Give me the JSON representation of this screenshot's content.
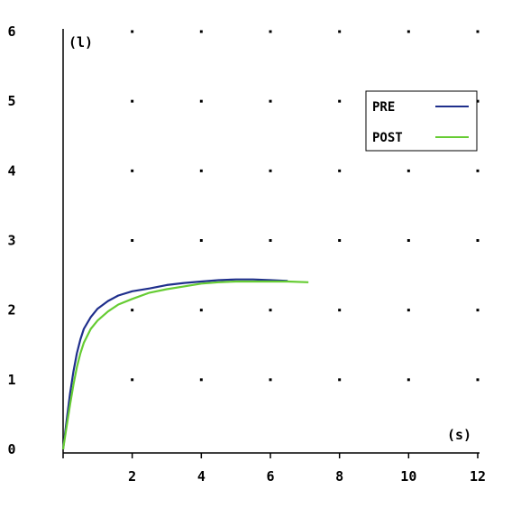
{
  "chart_data": {
    "type": "line",
    "xlabel": "(s)",
    "ylabel": "(l)",
    "xlim": [
      0,
      12
    ],
    "ylim": [
      0,
      6
    ],
    "x_ticks": [
      2,
      4,
      6,
      8,
      10,
      12
    ],
    "y_ticks": [
      0,
      1,
      2,
      3,
      4,
      5,
      6
    ],
    "grid": "dots",
    "legend_position": "top-right",
    "series": [
      {
        "name": "PRE",
        "color": "#1f2f8c",
        "points": [
          [
            0,
            0
          ],
          [
            0.1,
            0.4
          ],
          [
            0.2,
            0.8
          ],
          [
            0.3,
            1.12
          ],
          [
            0.4,
            1.38
          ],
          [
            0.5,
            1.58
          ],
          [
            0.6,
            1.73
          ],
          [
            0.8,
            1.9
          ],
          [
            1.0,
            2.02
          ],
          [
            1.3,
            2.13
          ],
          [
            1.6,
            2.21
          ],
          [
            2.0,
            2.27
          ],
          [
            2.5,
            2.31
          ],
          [
            3.0,
            2.36
          ],
          [
            3.5,
            2.39
          ],
          [
            4.0,
            2.41
          ],
          [
            4.5,
            2.43
          ],
          [
            5.0,
            2.44
          ],
          [
            5.5,
            2.44
          ],
          [
            6.0,
            2.43
          ],
          [
            6.5,
            2.42
          ]
        ]
      },
      {
        "name": "POST",
        "color": "#66cc33",
        "points": [
          [
            0,
            0
          ],
          [
            0.1,
            0.32
          ],
          [
            0.2,
            0.64
          ],
          [
            0.3,
            0.93
          ],
          [
            0.4,
            1.18
          ],
          [
            0.5,
            1.38
          ],
          [
            0.6,
            1.53
          ],
          [
            0.8,
            1.73
          ],
          [
            1.0,
            1.85
          ],
          [
            1.3,
            1.98
          ],
          [
            1.6,
            2.08
          ],
          [
            2.0,
            2.16
          ],
          [
            2.5,
            2.25
          ],
          [
            3.0,
            2.3
          ],
          [
            3.5,
            2.34
          ],
          [
            4.0,
            2.38
          ],
          [
            4.5,
            2.4
          ],
          [
            5.0,
            2.41
          ],
          [
            5.5,
            2.41
          ],
          [
            6.0,
            2.41
          ],
          [
            6.5,
            2.41
          ],
          [
            7.1,
            2.4
          ]
        ]
      }
    ]
  }
}
